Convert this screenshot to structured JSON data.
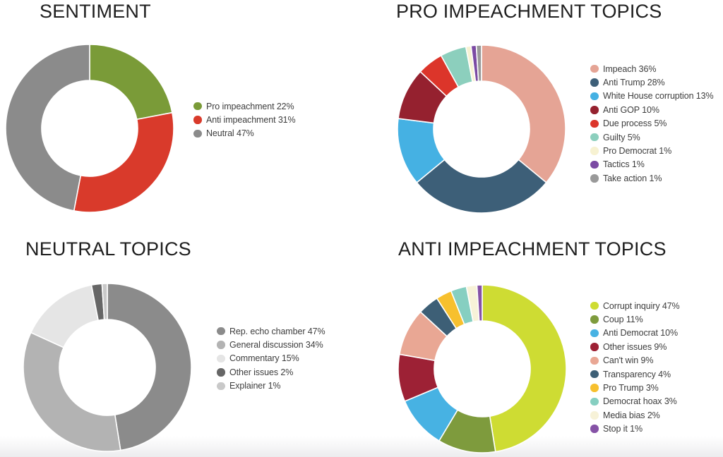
{
  "chart_data": [
    {
      "type": "pie",
      "donut": true,
      "title": "SENTIMENT",
      "start": "top",
      "direction": "clockwise",
      "legend_position": "right",
      "unit": "%",
      "categories": [
        "Pro impeachment",
        "Anti impeachment",
        "Neutral"
      ],
      "values": [
        22,
        31,
        47
      ],
      "colors": [
        "#7a9b38",
        "#d93a2b",
        "#8b8b8b"
      ],
      "legend_labels": [
        "Pro impeachment 22%",
        "Anti impeachment 31%",
        "Neutral 47%"
      ]
    },
    {
      "type": "pie",
      "donut": true,
      "title": "PRO IMPEACHMENT TOPICS",
      "start": "top",
      "direction": "clockwise",
      "legend_position": "right",
      "unit": "%",
      "categories": [
        "Impeach",
        "Anti Trump",
        "White House corruption",
        "Anti GOP",
        "Due process",
        "Guilty",
        "Pro Democrat",
        "Tactics",
        "Take action"
      ],
      "values": [
        36,
        28,
        13,
        10,
        5,
        5,
        1,
        1,
        1
      ],
      "colors": [
        "#e5a495",
        "#3d5f78",
        "#45b1e3",
        "#95212f",
        "#dc352a",
        "#8ccfbd",
        "#f7f2d2",
        "#7b4aa3",
        "#999999"
      ],
      "legend_labels": [
        "Impeach 36%",
        "Anti Trump 28%",
        "White House corruption 13%",
        "Anti GOP 10%",
        "Due process 5%",
        "Guilty 5%",
        "Pro Democrat 1%",
        "Tactics 1%",
        "Take action 1%"
      ]
    },
    {
      "type": "pie",
      "donut": true,
      "title": "NEUTRAL TOPICS",
      "start": "top",
      "direction": "clockwise",
      "legend_position": "right",
      "unit": "%",
      "categories": [
        "Rep. echo chamber",
        "General discussion",
        "Commentary",
        "Other issues",
        "Explainer"
      ],
      "values": [
        47,
        34,
        15,
        2,
        1
      ],
      "colors": [
        "#8b8b8b",
        "#b3b3b3",
        "#e5e5e5",
        "#666666",
        "#c9c9c9"
      ],
      "legend_labels": [
        "Rep. echo chamber 47%",
        "General discussion 34%",
        "Commentary 15%",
        "Other issues 2%",
        "Explainer 1%"
      ]
    },
    {
      "type": "pie",
      "donut": true,
      "title": "ANTI IMPEACHMENT TOPICS",
      "start": "top",
      "direction": "clockwise",
      "legend_position": "right",
      "unit": "%",
      "categories": [
        "Corrupt inquiry",
        "Coup",
        "Anti Democrat",
        "Other issues",
        "Can't win",
        "Transparency",
        "Pro Trump",
        "Democrat hoax",
        "Media bias",
        "Stop it"
      ],
      "values": [
        47,
        11,
        10,
        9,
        9,
        4,
        3,
        3,
        2,
        1
      ],
      "colors": [
        "#cedc33",
        "#7e9b3d",
        "#47b2e3",
        "#9d2135",
        "#e9a794",
        "#3d5f76",
        "#f7c02e",
        "#86cfc1",
        "#f7f2d8",
        "#8552a6"
      ],
      "legend_labels": [
        "Corrupt inquiry 47%",
        "Coup 11%",
        "Anti Democrat 10%",
        "Other issues 9%",
        "Can't win 9%",
        "Transparency 4%",
        "Pro Trump 3%",
        "Democrat hoax 3%",
        "Media bias 2%",
        "Stop it 1%"
      ]
    }
  ]
}
